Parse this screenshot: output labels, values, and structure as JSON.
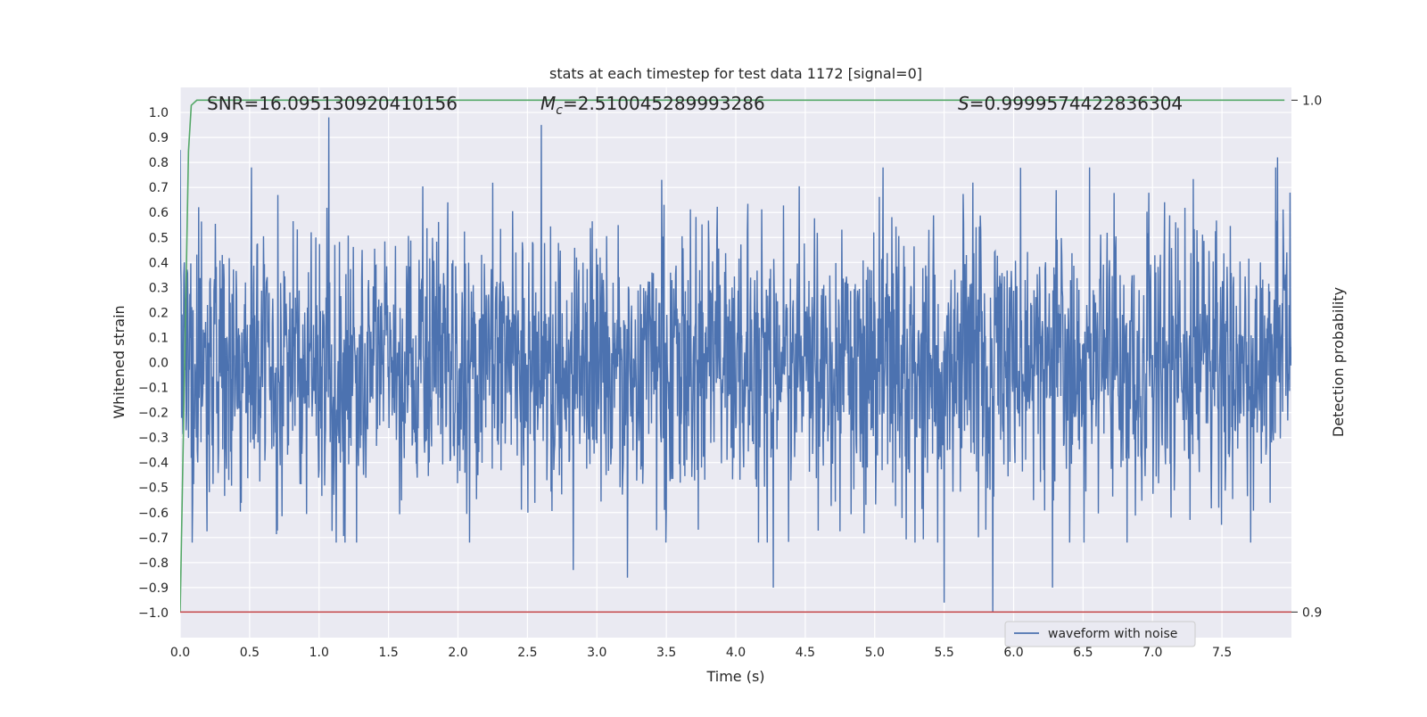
{
  "chart_data": {
    "type": "line",
    "title": "stats at each timestep for test data 1172 [signal=0]",
    "xlabel": "Time (s)",
    "ylabel": "Whitened strain",
    "ylabel_right": "Detection probability",
    "xlim": [
      0.0,
      8.0
    ],
    "ylim": [
      -1.1,
      1.1
    ],
    "ylim_right": [
      0.895,
      1.0025
    ],
    "x_ticks": [
      "0.0",
      "0.5",
      "1.0",
      "1.5",
      "2.0",
      "2.5",
      "3.0",
      "3.5",
      "4.0",
      "4.5",
      "5.0",
      "5.5",
      "6.0",
      "6.5",
      "7.0",
      "7.5"
    ],
    "y_ticks": [
      "1.0",
      "0.9",
      "0.8",
      "0.7",
      "0.6",
      "0.5",
      "0.4",
      "0.3",
      "0.2",
      "0.1",
      "0.0",
      "−0.1",
      "−0.2",
      "−0.3",
      "−0.4",
      "−0.5",
      "−0.6",
      "−0.7",
      "−0.8",
      "−0.9",
      "−1.0"
    ],
    "y_ticks_right": [
      "1.0",
      "0.9"
    ],
    "grid": true,
    "legend": {
      "position": "lower-right",
      "entries": [
        "waveform with noise"
      ]
    },
    "annotations": {
      "snr": "SNR=16.095130920410156",
      "mc_symbol": "M",
      "mc_sub": "c",
      "mc_value": "=2.510045289993286",
      "s_symbol": "S",
      "s_value": "=0.9999574422836304"
    },
    "series": [
      {
        "name": "waveform with noise",
        "axis": "left",
        "color": "#4c72b0",
        "style": "noise",
        "x_range": [
          0.0,
          8.0
        ],
        "amplitude_sd": 0.28,
        "notable_extremes": [
          {
            "x": 0.0,
            "y": 0.85
          },
          {
            "x": 1.07,
            "y": 0.98
          },
          {
            "x": 2.6,
            "y": 0.95
          },
          {
            "x": 2.83,
            "y": -0.83
          },
          {
            "x": 3.22,
            "y": -0.86
          },
          {
            "x": 4.27,
            "y": -0.9
          },
          {
            "x": 5.5,
            "y": -0.96
          },
          {
            "x": 5.85,
            "y": -1.0
          },
          {
            "x": 6.28,
            "y": -0.9
          },
          {
            "x": 7.9,
            "y": 0.82
          }
        ]
      },
      {
        "name": "",
        "axis": "right",
        "color": "#55a868",
        "x": [
          0.0,
          0.02,
          0.04,
          0.06,
          0.08,
          0.12,
          7.95
        ],
        "y": [
          0.9,
          0.93,
          0.96,
          0.99,
          0.999,
          1.0,
          1.0
        ]
      },
      {
        "name": "",
        "axis": "right",
        "color": "#c44e52",
        "x": [
          0.0,
          8.0
        ],
        "y": [
          0.9,
          0.9
        ]
      }
    ]
  }
}
